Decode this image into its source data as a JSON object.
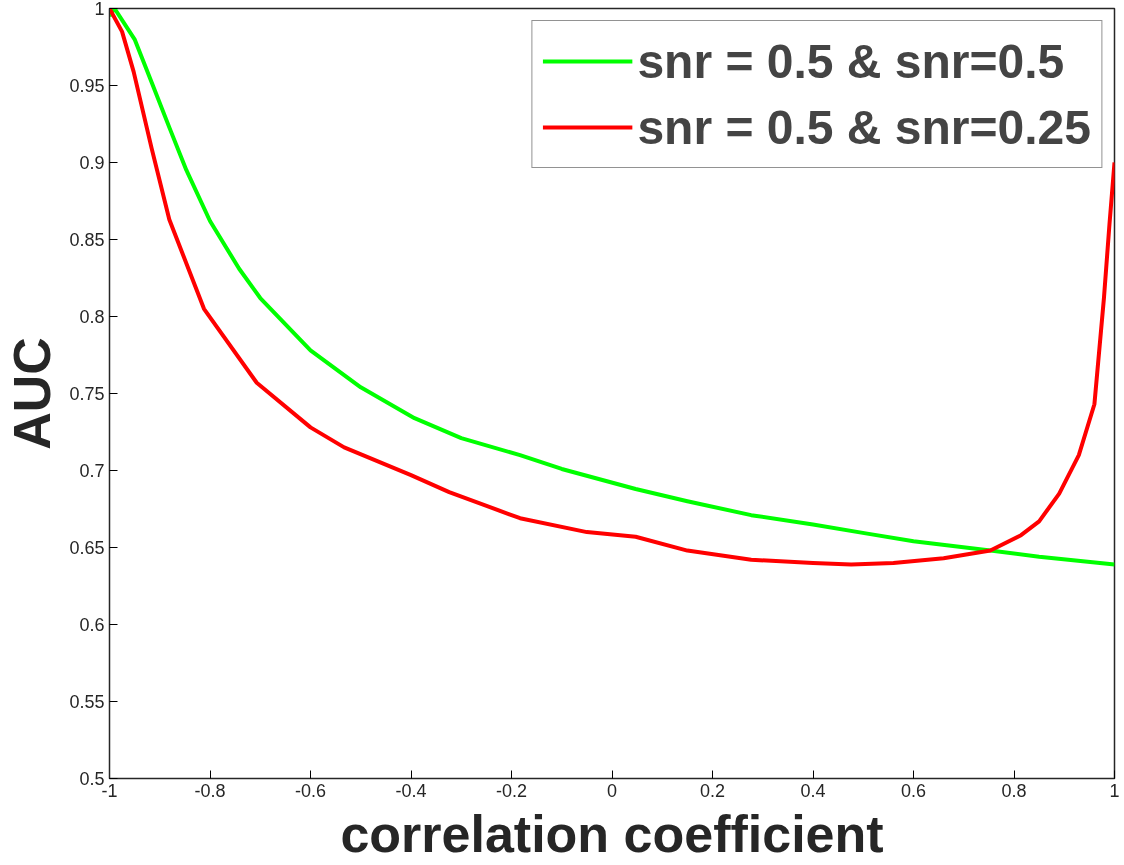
{
  "chart_data": {
    "type": "line",
    "xlabel": "correlation coefficient",
    "ylabel": "AUC",
    "xlim": [
      -1,
      1
    ],
    "ylim": [
      0.5,
      1
    ],
    "xticks": [
      -1,
      -0.8,
      -0.6,
      -0.4,
      -0.2,
      0,
      0.2,
      0.4,
      0.6,
      0.8,
      1
    ],
    "yticks": [
      0.5,
      0.55,
      0.6,
      0.65,
      0.7,
      0.75,
      0.8,
      0.85,
      0.9,
      0.95,
      1
    ],
    "grid": false,
    "legend": "top right",
    "line_style": "solid",
    "marker": "none",
    "series": [
      {
        "name": "snr = 0.5 & snr=0.5",
        "color": "#00ff00",
        "x": [
          -1,
          -0.99,
          -0.95,
          -0.916,
          -0.88,
          -0.847,
          -0.8,
          -0.742,
          -0.7,
          -0.6,
          -0.5,
          -0.393,
          -0.3,
          -0.183,
          -0.1,
          0.047,
          0.15,
          0.277,
          0.4,
          0.508,
          0.6,
          0.753,
          0.85,
          1
        ],
        "values": [
          0.995,
          1,
          0.98,
          0.952,
          0.922,
          0.895,
          0.862,
          0.831,
          0.812,
          0.778,
          0.754,
          0.734,
          0.721,
          0.71,
          0.701,
          0.688,
          0.68,
          0.671,
          0.665,
          0.659,
          0.654,
          0.648,
          0.644,
          0.639
        ]
      },
      {
        "name": "snr = 0.5 & snr=0.25",
        "color": "#ff0000",
        "x": [
          -1,
          -0.975,
          -0.952,
          -0.916,
          -0.881,
          -0.812,
          -0.707,
          -0.6,
          -0.533,
          -0.4,
          -0.324,
          -0.183,
          -0.05,
          0.047,
          0.15,
          0.277,
          0.4,
          0.476,
          0.56,
          0.66,
          0.753,
          0.814,
          0.85,
          0.89,
          0.929,
          0.96,
          0.979,
          0.99,
          1
        ],
        "values": [
          1,
          0.985,
          0.959,
          0.909,
          0.863,
          0.805,
          0.757,
          0.728,
          0.715,
          0.697,
          0.686,
          0.669,
          0.66,
          0.657,
          0.648,
          0.642,
          0.64,
          0.639,
          0.64,
          0.643,
          0.648,
          0.658,
          0.667,
          0.685,
          0.71,
          0.743,
          0.812,
          0.86,
          0.9
        ]
      }
    ]
  }
}
